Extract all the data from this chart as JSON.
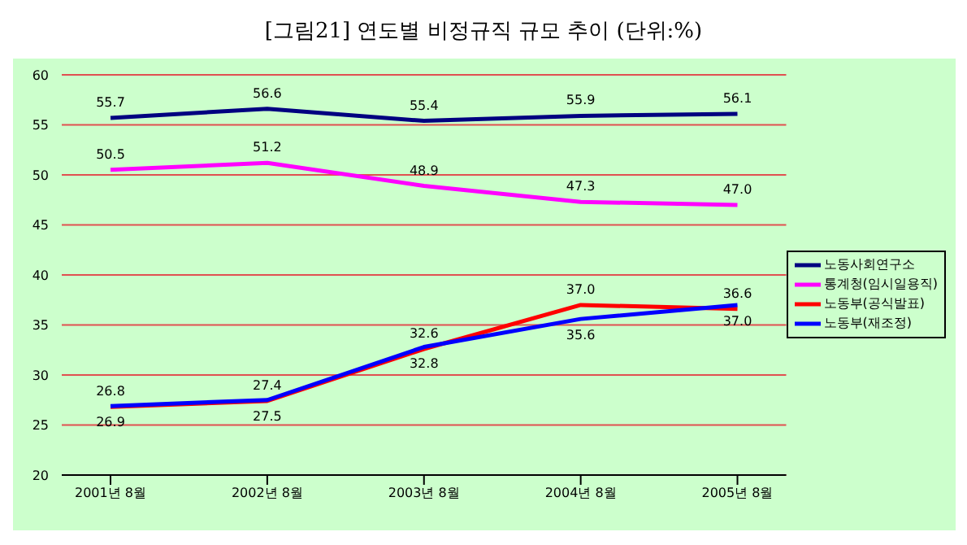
{
  "chart_data": {
    "type": "line",
    "title": "[그림21] 연도별 비정규직 규모 추이 (단위:%)",
    "categories": [
      "2001년 8월",
      "2002년 8월",
      "2003년 8월",
      "2004년 8월",
      "2005년 8월"
    ],
    "series": [
      {
        "name": "노동사회연구소",
        "color": "#000080",
        "values": [
          55.7,
          56.6,
          55.4,
          55.9,
          56.1
        ],
        "value_labels": [
          "55.7",
          "56.6",
          "55.4",
          "55.9",
          "56.1"
        ]
      },
      {
        "name": "통계청(임시일용직)",
        "color": "#ff00ff",
        "values": [
          50.5,
          51.2,
          48.9,
          47.3,
          47
        ],
        "value_labels": [
          "50.5",
          "51.2",
          "48.9",
          "47.3",
          "47.0"
        ]
      },
      {
        "name": "노동부(공식발표)",
        "color": "#ff0000",
        "values": [
          26.8,
          27.4,
          32.6,
          37,
          36.6
        ],
        "value_labels": [
          "26.8",
          "27.4",
          "32.6",
          "37.0",
          "36.6"
        ]
      },
      {
        "name": "노동부(재조정)",
        "color": "#0000ff",
        "values": [
          26.9,
          27.5,
          32.8,
          35.6,
          37
        ],
        "value_labels": [
          "26.9",
          "27.5",
          "32.8",
          "35.6",
          "37.0"
        ]
      }
    ],
    "ylim": [
      20,
      60
    ],
    "yticks": [
      20,
      25,
      30,
      35,
      40,
      45,
      50,
      55,
      60
    ],
    "grid": "y",
    "legend": "right",
    "marker": "none",
    "line_style": "solid"
  }
}
